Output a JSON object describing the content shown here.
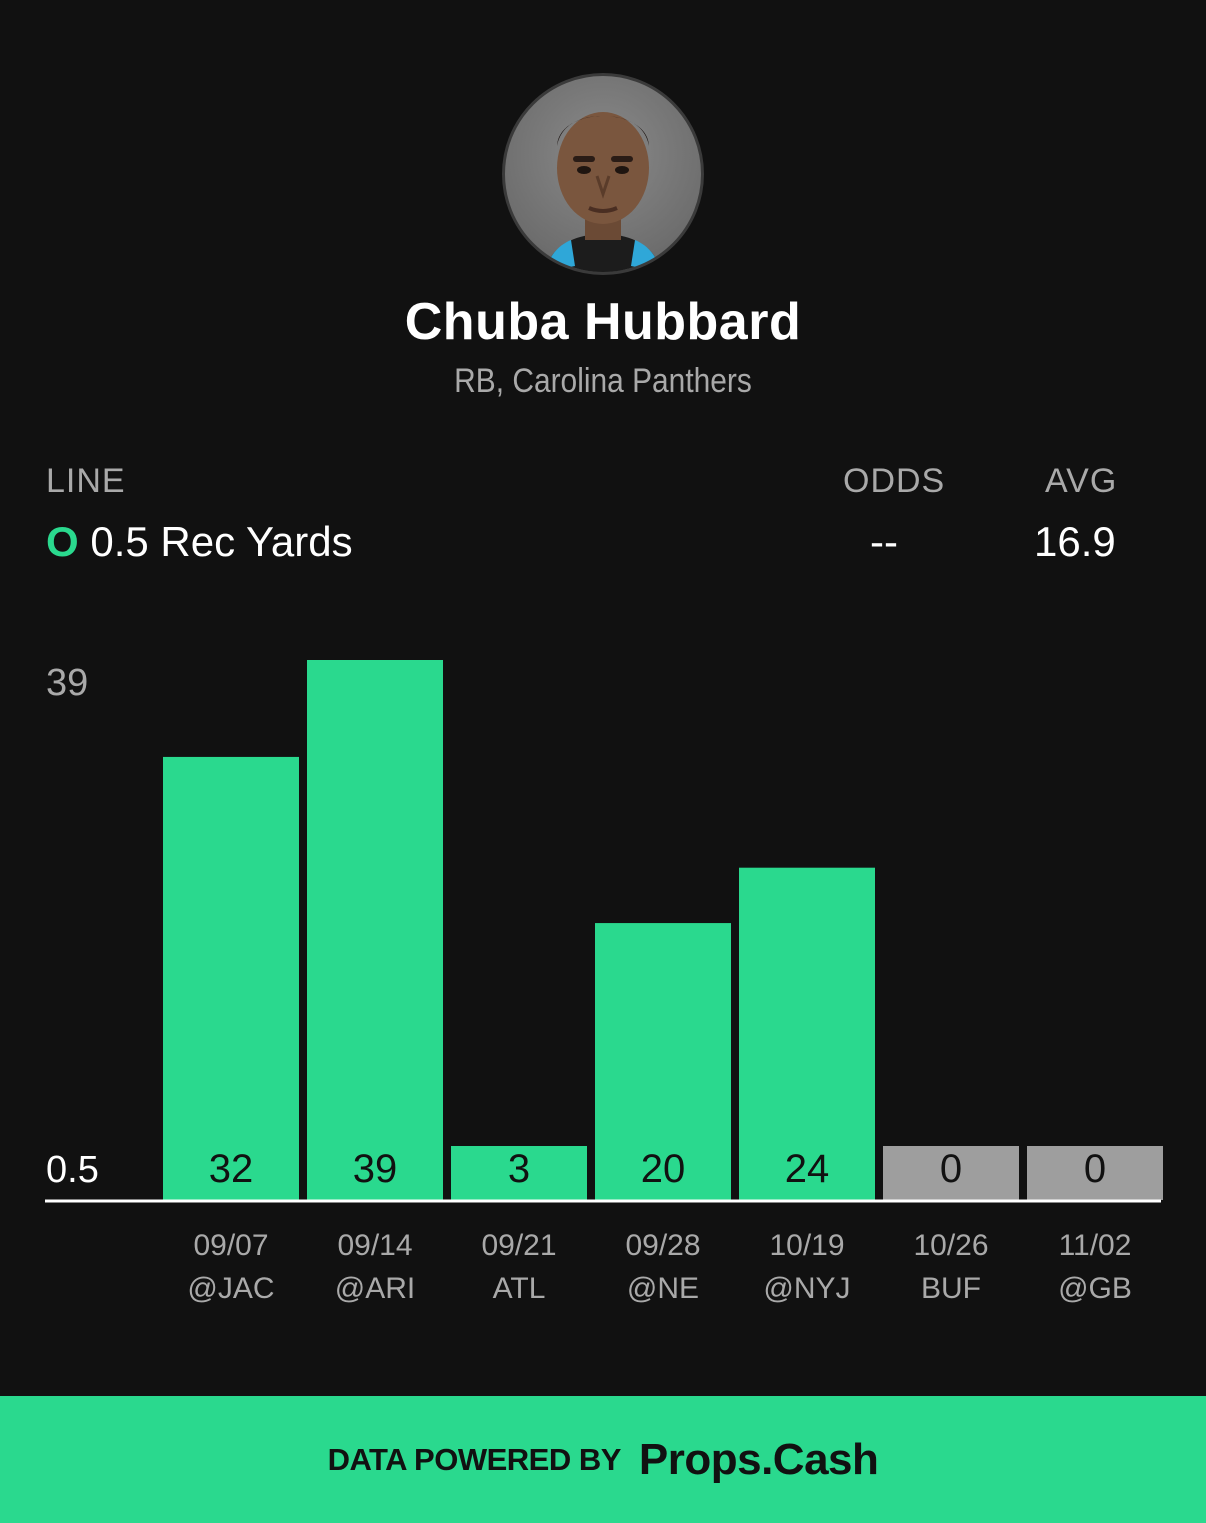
{
  "player": {
    "name": "Chuba Hubbard",
    "subtitle": "RB, Carolina Panthers"
  },
  "stats": {
    "line_label": "LINE",
    "line_indicator": "O",
    "line_value": "0.5 Rec Yards",
    "odds_label": "ODDS",
    "odds_value": "--",
    "avg_label": "AVG",
    "avg_value": "16.9"
  },
  "chart_data": {
    "type": "bar",
    "title": "",
    "xlabel": "",
    "ylabel": "",
    "ylim": [
      0,
      39
    ],
    "line": 0.5,
    "y_tick_labels": [
      "39",
      "0.5"
    ],
    "dates": [
      "09/07",
      "09/14",
      "09/21",
      "09/28",
      "10/19",
      "10/26",
      "11/02"
    ],
    "opponents": [
      "@JAC",
      "@ARI",
      "ATL",
      "@NE",
      "@NYJ",
      "BUF",
      "@GB"
    ],
    "values": [
      32,
      39,
      3,
      20,
      24,
      0,
      0
    ],
    "colors": {
      "over": "#2ad98e",
      "under": "#9e9e9e"
    }
  },
  "footer": {
    "text": "DATA POWERED BY",
    "brand": "Props.Cash"
  }
}
